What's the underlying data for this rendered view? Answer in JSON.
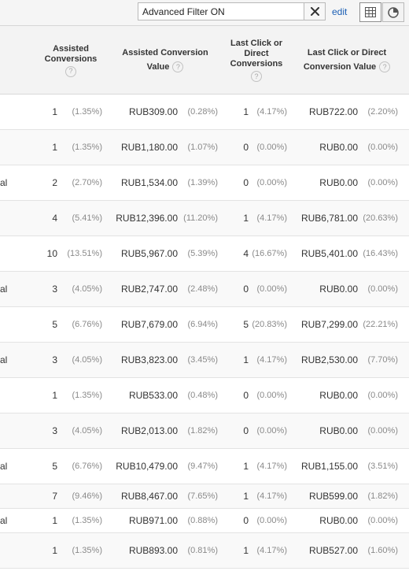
{
  "toolbar": {
    "filter_value": "Advanced Filter ON",
    "edit_label": "edit",
    "icons": {
      "clear": "close-icon",
      "grid": "grid-icon",
      "pie": "pie-chart-icon"
    }
  },
  "headers": {
    "assisted_conversions": [
      "Assisted",
      "Conversions"
    ],
    "assisted_conversion_value": [
      "Assisted Conversion",
      "Value"
    ],
    "last_click_conversions": [
      "Last Click or",
      "Direct",
      "Conversions"
    ],
    "last_click_conversion_value": [
      "Last Click or Direct",
      "Conversion Value"
    ],
    "help_glyph": "?"
  },
  "rows": [
    {
      "label": "",
      "ac": "1",
      "ac_pct": "(1.35%)",
      "acv": "RUB309.00",
      "acv_pct": "(0.28%)",
      "lc": "1",
      "lc_pct": "(4.17%)",
      "lcv": "RUB722.00",
      "lcv_pct": "(2.20%)"
    },
    {
      "label": "",
      "ac": "1",
      "ac_pct": "(1.35%)",
      "acv": "RUB1,180.00",
      "acv_pct": "(1.07%)",
      "lc": "0",
      "lc_pct": "(0.00%)",
      "lcv": "RUB0.00",
      "lcv_pct": "(0.00%)"
    },
    {
      "label": "al",
      "ac": "2",
      "ac_pct": "(2.70%)",
      "acv": "RUB1,534.00",
      "acv_pct": "(1.39%)",
      "lc": "0",
      "lc_pct": "(0.00%)",
      "lcv": "RUB0.00",
      "lcv_pct": "(0.00%)"
    },
    {
      "label": "",
      "ac": "4",
      "ac_pct": "(5.41%)",
      "acv": "RUB12,396.00",
      "acv_pct": "(11.20%)",
      "lc": "1",
      "lc_pct": "(4.17%)",
      "lcv": "RUB6,781.00",
      "lcv_pct": "(20.63%)"
    },
    {
      "label": "",
      "ac": "10",
      "ac_pct": "(13.51%)",
      "acv": "RUB5,967.00",
      "acv_pct": "(5.39%)",
      "lc": "4",
      "lc_pct": "(16.67%)",
      "lcv": "RUB5,401.00",
      "lcv_pct": "(16.43%)"
    },
    {
      "label": "al",
      "ac": "3",
      "ac_pct": "(4.05%)",
      "acv": "RUB2,747.00",
      "acv_pct": "(2.48%)",
      "lc": "0",
      "lc_pct": "(0.00%)",
      "lcv": "RUB0.00",
      "lcv_pct": "(0.00%)"
    },
    {
      "label": "",
      "ac": "5",
      "ac_pct": "(6.76%)",
      "acv": "RUB7,679.00",
      "acv_pct": "(6.94%)",
      "lc": "5",
      "lc_pct": "(20.83%)",
      "lcv": "RUB7,299.00",
      "lcv_pct": "(22.21%)"
    },
    {
      "label": "al",
      "ac": "3",
      "ac_pct": "(4.05%)",
      "acv": "RUB3,823.00",
      "acv_pct": "(3.45%)",
      "lc": "1",
      "lc_pct": "(4.17%)",
      "lcv": "RUB2,530.00",
      "lcv_pct": "(7.70%)"
    },
    {
      "label": "",
      "ac": "1",
      "ac_pct": "(1.35%)",
      "acv": "RUB533.00",
      "acv_pct": "(0.48%)",
      "lc": "0",
      "lc_pct": "(0.00%)",
      "lcv": "RUB0.00",
      "lcv_pct": "(0.00%)"
    },
    {
      "label": "",
      "ac": "3",
      "ac_pct": "(4.05%)",
      "acv": "RUB2,013.00",
      "acv_pct": "(1.82%)",
      "lc": "0",
      "lc_pct": "(0.00%)",
      "lcv": "RUB0.00",
      "lcv_pct": "(0.00%)"
    },
    {
      "label": "al",
      "ac": "5",
      "ac_pct": "(6.76%)",
      "acv": "RUB10,479.00",
      "acv_pct": "(9.47%)",
      "lc": "1",
      "lc_pct": "(4.17%)",
      "lcv": "RUB1,155.00",
      "lcv_pct": "(3.51%)"
    },
    {
      "label": "",
      "ac": "7",
      "ac_pct": "(9.46%)",
      "acv": "RUB8,467.00",
      "acv_pct": "(7.65%)",
      "lc": "1",
      "lc_pct": "(4.17%)",
      "lcv": "RUB599.00",
      "lcv_pct": "(1.82%)"
    },
    {
      "label": "al",
      "ac": "1",
      "ac_pct": "(1.35%)",
      "acv": "RUB971.00",
      "acv_pct": "(0.88%)",
      "lc": "0",
      "lc_pct": "(0.00%)",
      "lcv": "RUB0.00",
      "lcv_pct": "(0.00%)"
    },
    {
      "label": "",
      "ac": "1",
      "ac_pct": "(1.35%)",
      "acv": "RUB893.00",
      "acv_pct": "(0.81%)",
      "lc": "1",
      "lc_pct": "(4.17%)",
      "lcv": "RUB527.00",
      "lcv_pct": "(1.60%)"
    }
  ]
}
